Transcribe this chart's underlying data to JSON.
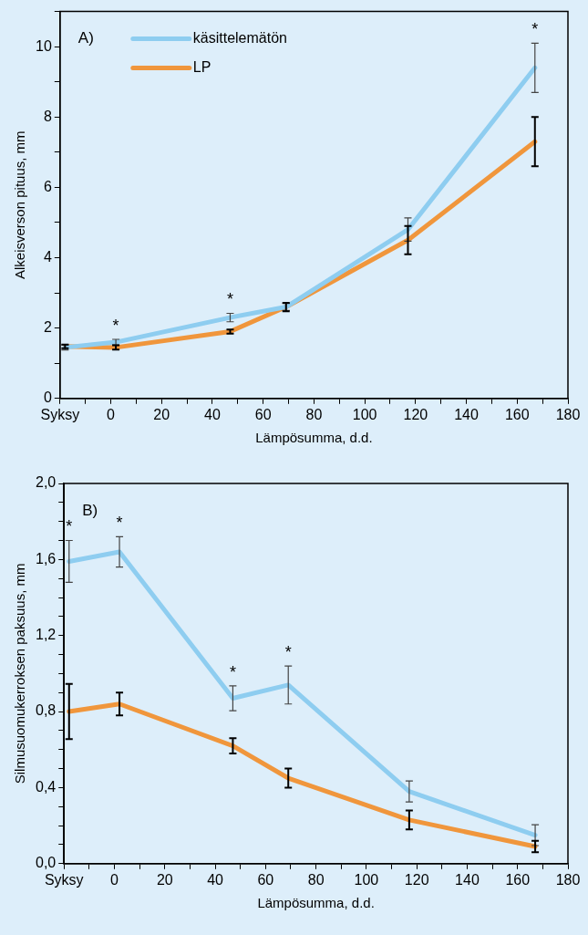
{
  "chart_data": [
    {
      "type": "line",
      "title": "A)",
      "xlabel": "Lämpösumma, d.d.",
      "ylabel": "Alkeisverson pituus, mm",
      "x": [
        -18,
        2,
        47,
        69,
        117,
        167
      ],
      "series": [
        {
          "name": "käsittelemätön",
          "color": "#8ecdf0",
          "values": [
            1.45,
            1.6,
            2.3,
            2.6,
            4.8,
            9.4
          ],
          "errors": [
            0.07,
            0.08,
            0.12,
            0.1,
            0.33,
            0.7
          ]
        },
        {
          "name": "LP",
          "color": "#f0963c",
          "values": [
            1.48,
            1.45,
            1.9,
            2.6,
            4.5,
            7.3
          ],
          "errors": [
            0.05,
            0.06,
            0.06,
            0.12,
            0.4,
            0.7
          ]
        }
      ],
      "xlim": [
        -20,
        180
      ],
      "xticks": [
        {
          "value": -20,
          "label": "Syksy"
        },
        {
          "value": -10,
          "label": null
        },
        0,
        {
          "value": 10,
          "label": null
        },
        20,
        {
          "value": 30,
          "label": null
        },
        40,
        {
          "value": 50,
          "label": null
        },
        60,
        {
          "value": 70,
          "label": null
        },
        80,
        {
          "value": 90,
          "label": null
        },
        100,
        {
          "value": 110,
          "label": null
        },
        120,
        {
          "value": 130,
          "label": null
        },
        140,
        {
          "value": 150,
          "label": null
        },
        160,
        {
          "value": 170,
          "label": null
        },
        180
      ],
      "ylim": [
        0,
        11
      ],
      "yticks": [
        0,
        {
          "value": 1,
          "label": null
        },
        2,
        {
          "value": 3,
          "label": null
        },
        4,
        {
          "value": 5,
          "label": null
        },
        6,
        {
          "value": 7,
          "label": null
        },
        8,
        {
          "value": 9,
          "label": null
        },
        10,
        {
          "value": 11,
          "label": null
        }
      ],
      "annotations": [
        {
          "text": "*",
          "x": 2,
          "y": 1.6
        },
        {
          "text": "*",
          "x": 47,
          "y": 2.3
        },
        {
          "text": "*",
          "x": 167,
          "y": 9.4
        }
      ],
      "legend": "top left",
      "line_style": "solid",
      "grid": false
    },
    {
      "type": "line",
      "title": "B)",
      "xlabel": "Lämpösumma, d.d.",
      "ylabel": "Silmusuomukerroksen paksuus, mm",
      "x": [
        -18,
        2,
        47,
        69,
        117,
        167
      ],
      "series": [
        {
          "color": "#8ecdf0",
          "values": [
            1.59,
            1.64,
            0.87,
            0.94,
            0.38,
            0.15
          ],
          "errors": [
            0.11,
            0.08,
            0.065,
            0.1,
            0.055,
            0.055
          ]
        },
        {
          "color": "#f0963c",
          "values": [
            0.8,
            0.84,
            0.62,
            0.45,
            0.23,
            0.09
          ],
          "errors": [
            0.145,
            0.06,
            0.04,
            0.05,
            0.05,
            0.03
          ]
        }
      ],
      "xlim": [
        -20,
        180
      ],
      "xticks": [
        {
          "value": -20,
          "label": "Syksy"
        },
        {
          "value": -10,
          "label": null
        },
        0,
        {
          "value": 10,
          "label": null
        },
        20,
        {
          "value": 30,
          "label": null
        },
        40,
        {
          "value": 50,
          "label": null
        },
        60,
        {
          "value": 70,
          "label": null
        },
        80,
        {
          "value": 90,
          "label": null
        },
        100,
        {
          "value": 110,
          "label": null
        },
        120,
        {
          "value": 130,
          "label": null
        },
        140,
        {
          "value": 150,
          "label": null
        },
        160,
        {
          "value": 170,
          "label": null
        },
        180
      ],
      "ylim": [
        0,
        2
      ],
      "yticks": [
        {
          "value": 0,
          "label": "0,0"
        },
        {
          "value": 0.1,
          "label": null
        },
        {
          "value": 0.2,
          "label": null
        },
        {
          "value": 0.3,
          "label": null
        },
        {
          "value": 0.4,
          "label": "0,4"
        },
        {
          "value": 0.5,
          "label": null
        },
        {
          "value": 0.6,
          "label": null
        },
        {
          "value": 0.7,
          "label": null
        },
        {
          "value": 0.8,
          "label": "0,8"
        },
        {
          "value": 0.9,
          "label": null
        },
        {
          "value": 1.0,
          "label": null
        },
        {
          "value": 1.1,
          "label": null
        },
        {
          "value": 1.2,
          "label": "1,2"
        },
        {
          "value": 1.3,
          "label": null
        },
        {
          "value": 1.4,
          "label": null
        },
        {
          "value": 1.5,
          "label": null
        },
        {
          "value": 1.6,
          "label": "1,6"
        },
        {
          "value": 1.7,
          "label": null
        },
        {
          "value": 1.8,
          "label": null
        },
        {
          "value": 1.9,
          "label": null
        },
        {
          "value": 2,
          "label": "2,0"
        }
      ],
      "annotations": [
        {
          "text": "*",
          "x": -18,
          "y": 1.59
        },
        {
          "text": "*",
          "x": 2,
          "y": 1.64
        },
        {
          "text": "*",
          "x": 47,
          "y": 0.87
        },
        {
          "text": "*",
          "x": 69,
          "y": 0.94
        }
      ],
      "line_style": "solid",
      "grid": false
    }
  ]
}
